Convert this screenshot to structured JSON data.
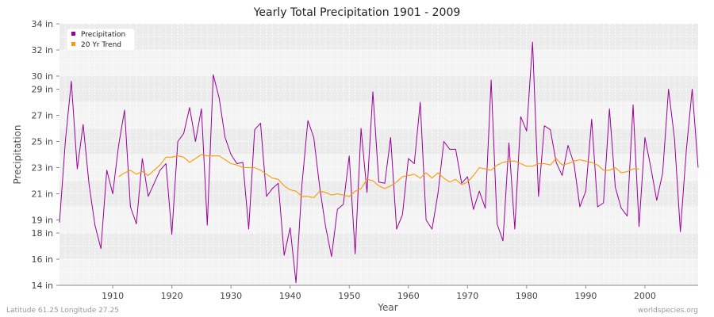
{
  "chart_data": {
    "type": "line",
    "title": "Yearly Total Precipitation 1901 - 2009",
    "xlabel": "Year",
    "ylabel": "Precipitation",
    "xlim": [
      1901,
      2009
    ],
    "ylim": [
      14,
      34
    ],
    "x_ticks": [
      1910,
      1920,
      1930,
      1940,
      1950,
      1960,
      1970,
      1980,
      1990,
      2000
    ],
    "y_ticks": [
      14,
      16,
      18,
      19,
      21,
      23,
      25,
      27,
      29,
      30,
      32,
      34
    ],
    "y_tick_labels": [
      "14 in",
      "16 in",
      "18 in",
      "19 in",
      "21 in",
      "23 in",
      "25 in",
      "27 in",
      "29 in",
      "30 in",
      "32 in",
      "34 in"
    ],
    "legend_position": "top-left",
    "series": [
      {
        "name": "Precipitation",
        "color": "#990099",
        "x": [
          1901,
          1902,
          1903,
          1904,
          1905,
          1906,
          1907,
          1908,
          1909,
          1910,
          1911,
          1912,
          1913,
          1914,
          1915,
          1916,
          1917,
          1918,
          1919,
          1920,
          1921,
          1922,
          1923,
          1924,
          1925,
          1926,
          1927,
          1928,
          1929,
          1930,
          1931,
          1932,
          1933,
          1934,
          1935,
          1936,
          1937,
          1938,
          1939,
          1940,
          1941,
          1942,
          1943,
          1944,
          1945,
          1946,
          1947,
          1948,
          1949,
          1950,
          1951,
          1952,
          1953,
          1954,
          1955,
          1956,
          1957,
          1958,
          1959,
          1960,
          1961,
          1962,
          1963,
          1964,
          1965,
          1966,
          1967,
          1968,
          1969,
          1970,
          1971,
          1972,
          1973,
          1974,
          1975,
          1976,
          1977,
          1978,
          1979,
          1980,
          1981,
          1982,
          1983,
          1984,
          1985,
          1986,
          1987,
          1988,
          1989,
          1990,
          1991,
          1992,
          1993,
          1994,
          1995,
          1996,
          1997,
          1998,
          1999,
          2000,
          2001,
          2002,
          2003,
          2004,
          2005,
          2006,
          2007,
          2008,
          2009
        ],
        "values": [
          18.8,
          25.1,
          29.6,
          22.9,
          26.3,
          21.7,
          18.6,
          16.8,
          22.8,
          21.0,
          24.7,
          27.4,
          20.0,
          18.7,
          23.7,
          20.8,
          21.8,
          22.8,
          23.3,
          17.9,
          25.0,
          25.6,
          27.6,
          25.0,
          27.5,
          18.6,
          30.1,
          28.3,
          25.3,
          24.0,
          23.3,
          23.4,
          18.3,
          25.9,
          26.4,
          20.8,
          21.4,
          21.8,
          16.3,
          18.4,
          14.2,
          21.7,
          26.6,
          25.3,
          21.5,
          18.5,
          16.2,
          19.8,
          20.2,
          23.9,
          16.4,
          26.0,
          21.1,
          28.8,
          21.9,
          21.8,
          25.3,
          18.3,
          19.4,
          23.7,
          23.3,
          28.0,
          19.0,
          18.3,
          21.0,
          25.0,
          24.4,
          24.4,
          21.8,
          22.3,
          19.8,
          21.2,
          19.9,
          29.7,
          18.7,
          17.4,
          24.9,
          18.3,
          26.9,
          25.8,
          32.6,
          20.8,
          26.2,
          25.9,
          23.4,
          22.4,
          24.7,
          23.3,
          20.0,
          21.2,
          26.7,
          20.0,
          20.3,
          27.5,
          21.5,
          19.9,
          19.3,
          27.8,
          18.5,
          25.3,
          23.0,
          20.5,
          22.6,
          29.0,
          25.2,
          18.1,
          24.3,
          29.0,
          23.0
        ]
      },
      {
        "name": "20 Yr Trend",
        "color": "#ff9900",
        "x": [
          1911,
          1912,
          1913,
          1914,
          1915,
          1916,
          1917,
          1918,
          1919,
          1920,
          1921,
          1922,
          1923,
          1924,
          1925,
          1926,
          1927,
          1928,
          1929,
          1930,
          1931,
          1932,
          1933,
          1934,
          1935,
          1936,
          1937,
          1938,
          1939,
          1940,
          1941,
          1942,
          1943,
          1944,
          1945,
          1946,
          1947,
          1948,
          1949,
          1950,
          1951,
          1952,
          1953,
          1954,
          1955,
          1956,
          1957,
          1958,
          1959,
          1960,
          1961,
          1962,
          1963,
          1964,
          1965,
          1966,
          1967,
          1968,
          1969,
          1970,
          1971,
          1972,
          1973,
          1974,
          1975,
          1976,
          1977,
          1978,
          1979,
          1980,
          1981,
          1982,
          1983,
          1984,
          1985,
          1986,
          1987,
          1988,
          1989,
          1990,
          1991,
          1992,
          1993,
          1994,
          1995,
          1996,
          1997,
          1998,
          1999
        ],
        "values": [
          22.3,
          22.6,
          22.8,
          22.5,
          22.7,
          22.4,
          22.8,
          23.2,
          23.8,
          23.8,
          23.9,
          23.8,
          23.4,
          23.7,
          24.0,
          23.9,
          23.9,
          23.9,
          23.6,
          23.3,
          23.2,
          23.0,
          23.0,
          23.0,
          22.8,
          22.5,
          22.2,
          22.1,
          21.6,
          21.3,
          21.2,
          20.8,
          20.8,
          20.7,
          21.2,
          21.1,
          20.9,
          21.0,
          20.9,
          20.8,
          21.2,
          21.4,
          22.1,
          22.0,
          21.6,
          21.4,
          21.6,
          21.9,
          22.3,
          22.4,
          22.5,
          22.2,
          22.6,
          22.2,
          22.6,
          22.2,
          21.9,
          22.1,
          21.7,
          21.9,
          22.4,
          23.0,
          22.9,
          22.8,
          23.2,
          23.4,
          23.5,
          23.5,
          23.3,
          23.1,
          23.1,
          23.3,
          23.3,
          23.2,
          23.7,
          23.2,
          23.3,
          23.5,
          23.6,
          23.5,
          23.4,
          23.2,
          22.8,
          22.8,
          23.0,
          22.6,
          22.7,
          22.9,
          22.9
        ]
      }
    ]
  },
  "footer": {
    "location": "Latitude 61.25 Longitude 27.25",
    "source": "worldspecies.org"
  }
}
